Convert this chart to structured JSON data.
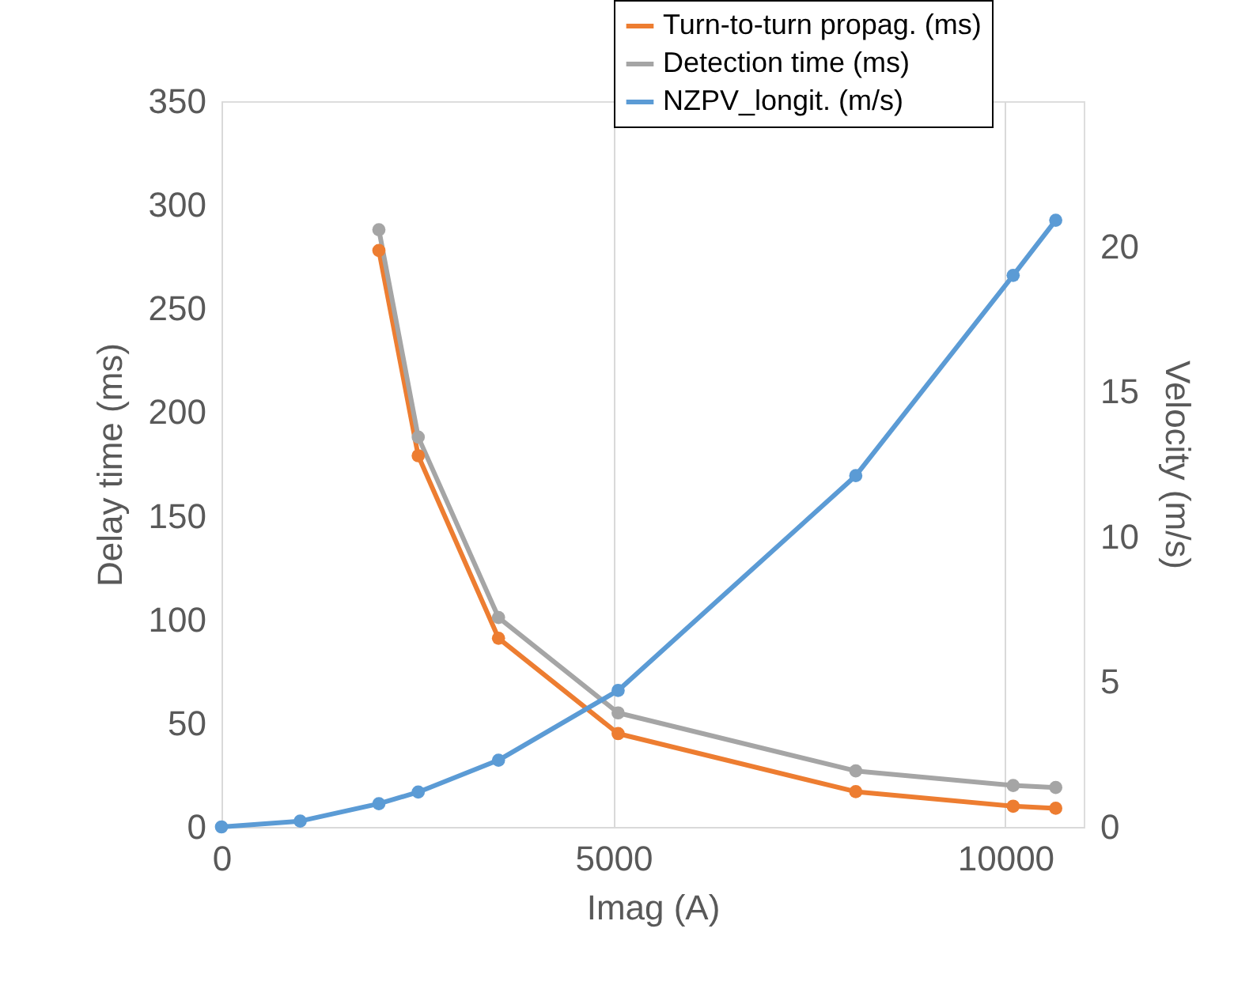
{
  "chart_data": {
    "type": "line",
    "xlabel": "Imag (A)",
    "ylabel": "Delay time (ms)",
    "y2label": "Velocity (m/s)",
    "xlim": [
      0,
      11000
    ],
    "xticks": [
      0,
      5000,
      10000
    ],
    "ylim": [
      0,
      350
    ],
    "yticks": [
      0,
      50,
      100,
      150,
      200,
      250,
      300,
      350
    ],
    "y2lim": [
      0,
      25
    ],
    "y2ticks": [
      0,
      5,
      10,
      15,
      20
    ],
    "grid": "x",
    "legend": "top right",
    "marker": "circle",
    "line_style": "solid",
    "series": [
      {
        "name": "Turn-to-turn propag. (ms)",
        "color": "#ed7d31",
        "x": [
          2008,
          2510,
          3534,
          5060,
          8092,
          10100,
          10643
        ],
        "values": [
          278,
          179,
          91,
          45,
          17,
          10,
          9
        ]
      },
      {
        "name": "Detection time (ms)",
        "color": "#a5a5a5",
        "x": [
          2008,
          2510,
          3534,
          5060,
          8092,
          10100,
          10643
        ],
        "values": [
          288,
          188,
          101,
          55,
          27,
          20,
          19
        ]
      },
      {
        "name": "NZPV_longit. (m/s)",
        "color": "#5b9bd5",
        "axis": "y2",
        "x": [
          0,
          1004,
          2008,
          2510,
          3534,
          5060,
          8092,
          10100,
          10643
        ],
        "values": [
          0,
          0.2,
          0.8,
          1.2,
          2.3,
          4.7,
          12.1,
          19.0,
          20.9
        ]
      }
    ]
  }
}
